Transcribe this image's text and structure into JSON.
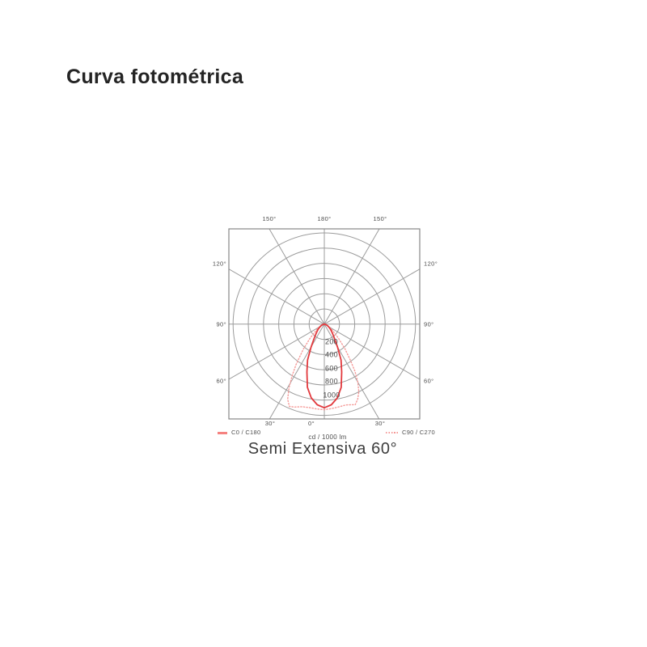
{
  "page": {
    "title": "Curva fotométrica",
    "caption": "Semi Extensiva 60°"
  },
  "chart_data": {
    "type": "line",
    "subtype": "polar-photometric-curve",
    "title": "Curva fotométrica",
    "caption": "Semi Extensiva 60°",
    "units_label": "cd / 1000 lm",
    "angle_unit": "degrees from nadir (0° = straight down)",
    "radial_unit": "cd / 1000 lm",
    "ring_step": 200,
    "rings_total": 6,
    "radial_max": 1200,
    "ring_values": [
      "200",
      "400",
      "600",
      "800",
      "1000"
    ],
    "angle_labels": {
      "top": [
        "150°",
        "180°",
        "150°"
      ],
      "left": [
        "120°",
        "90°",
        "60°"
      ],
      "right": [
        "120°",
        "90°",
        "60°"
      ],
      "bottom": [
        "30°",
        "0°",
        "30°"
      ]
    },
    "grid": {
      "color": "#9c9c9c",
      "border_color": "#878787",
      "spoke_step_deg": 30
    },
    "series": [
      {
        "name": "C0 / C180",
        "style": "solid",
        "color": "#e2393d",
        "legend_color": "#f58280",
        "mirror": true,
        "points": [
          [
            0,
            1100
          ],
          [
            5,
            1065
          ],
          [
            10,
            985
          ],
          [
            15,
            860
          ],
          [
            20,
            670
          ],
          [
            25,
            520
          ],
          [
            30,
            350
          ],
          [
            35,
            240
          ],
          [
            40,
            175
          ],
          [
            45,
            135
          ],
          [
            50,
            105
          ],
          [
            55,
            80
          ],
          [
            60,
            60
          ],
          [
            65,
            45
          ],
          [
            70,
            32
          ],
          [
            75,
            20
          ],
          [
            80,
            12
          ],
          [
            85,
            6
          ],
          [
            90,
            0
          ]
        ]
      },
      {
        "name": "C90 / C270",
        "style": "dotted",
        "color": "#f59b99",
        "legend_color": "#f59b99",
        "mirror": false,
        "points": [
          [
            -90,
            0
          ],
          [
            -80,
            12
          ],
          [
            -70,
            35
          ],
          [
            -60,
            70
          ],
          [
            -55,
            110
          ],
          [
            -50,
            170
          ],
          [
            -45,
            270
          ],
          [
            -40,
            430
          ],
          [
            -35,
            650
          ],
          [
            -32,
            800
          ],
          [
            -29,
            960
          ],
          [
            -26,
            1100
          ],
          [
            -23,
            1175
          ],
          [
            -20,
            1160
          ],
          [
            -15,
            1125
          ],
          [
            -10,
            1115
          ],
          [
            -5,
            1120
          ],
          [
            0,
            1125
          ],
          [
            5,
            1115
          ],
          [
            10,
            1105
          ],
          [
            15,
            1100
          ],
          [
            18,
            1115
          ],
          [
            21,
            1135
          ],
          [
            24,
            1080
          ],
          [
            27,
            1000
          ],
          [
            30,
            880
          ],
          [
            33,
            740
          ],
          [
            36,
            580
          ],
          [
            40,
            420
          ],
          [
            45,
            265
          ],
          [
            50,
            170
          ],
          [
            55,
            112
          ],
          [
            60,
            70
          ],
          [
            70,
            30
          ],
          [
            80,
            12
          ],
          [
            90,
            0
          ]
        ]
      }
    ]
  }
}
